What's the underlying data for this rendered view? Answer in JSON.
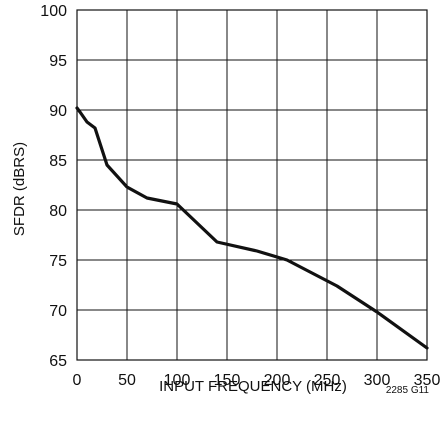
{
  "chart_data": {
    "type": "line",
    "title": "",
    "xlabel": "INPUT FREQUENCY (MHz)",
    "ylabel": "SFDR (dBRS)",
    "figure_code": "2285 G11",
    "xlim": [
      0,
      350
    ],
    "ylim": [
      65,
      100
    ],
    "xticks": [
      0,
      50,
      100,
      150,
      200,
      250,
      300,
      350
    ],
    "yticks": [
      65,
      70,
      75,
      80,
      85,
      90,
      95,
      100
    ],
    "grid": true,
    "legend": "none",
    "series": [
      {
        "x": [
          0,
          3,
          10,
          18,
          30,
          50,
          70,
          100,
          140,
          180,
          210,
          260,
          300,
          350
        ],
        "y": [
          90.2,
          89.8,
          88.8,
          88.2,
          84.5,
          82.3,
          81.2,
          80.6,
          76.8,
          75.9,
          75.0,
          72.4,
          69.8,
          66.2
        ]
      }
    ],
    "colors": {
      "line": "#111111",
      "grid": "#111111",
      "frame": "#111111",
      "text": "#111111"
    }
  }
}
